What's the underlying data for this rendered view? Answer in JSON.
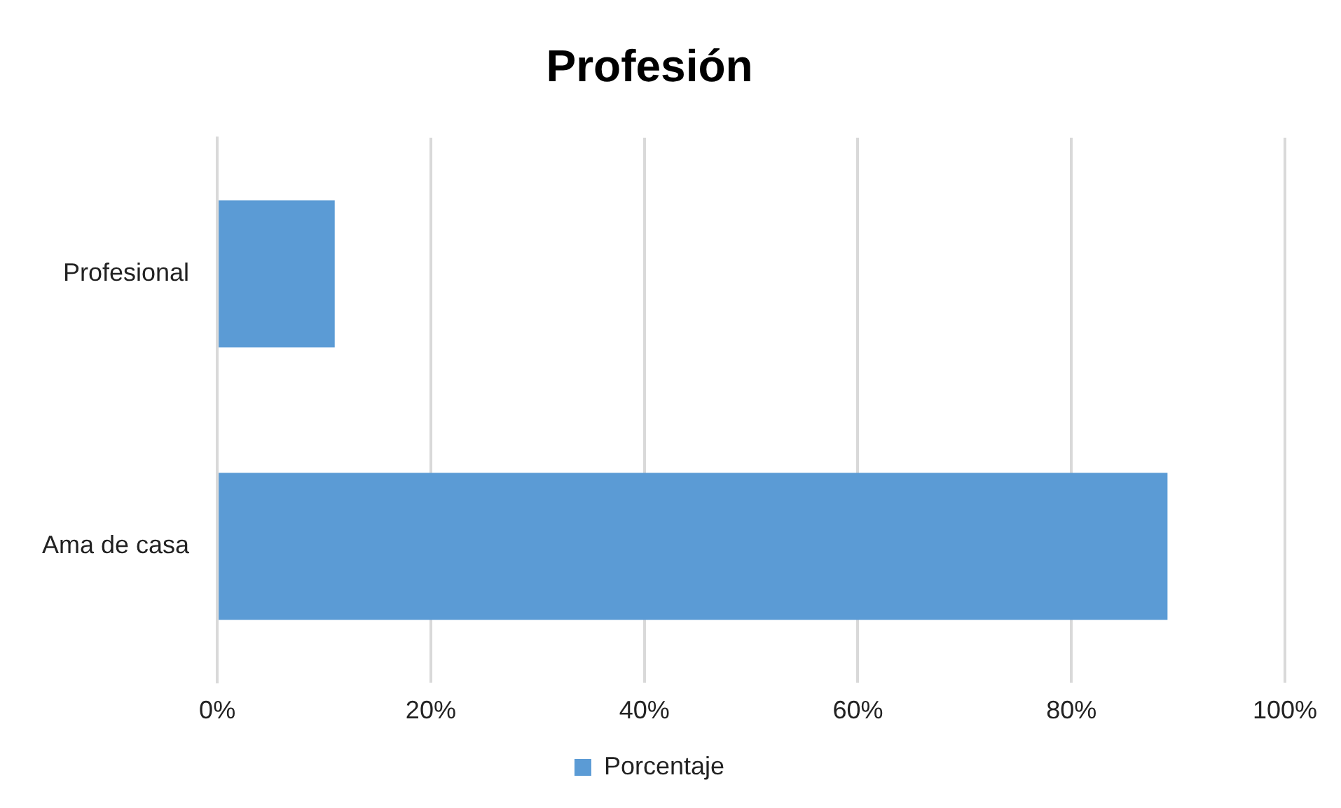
{
  "chart_data": {
    "type": "bar",
    "orientation": "horizontal",
    "title": "Profesión",
    "categories": [
      "Profesional",
      "Ama de casa"
    ],
    "series": [
      {
        "name": "Porcentaje",
        "color": "#5b9bd5",
        "values": [
          11,
          89
        ]
      }
    ],
    "xlim": [
      0,
      100
    ],
    "xticks": [
      {
        "value": 0,
        "label": "0%"
      },
      {
        "value": 20,
        "label": "20%"
      },
      {
        "value": 40,
        "label": "40%"
      },
      {
        "value": 60,
        "label": "60%"
      },
      {
        "value": 80,
        "label": "80%"
      },
      {
        "value": 100,
        "label": "100%"
      }
    ],
    "grid": "x",
    "legend": "bottom"
  }
}
